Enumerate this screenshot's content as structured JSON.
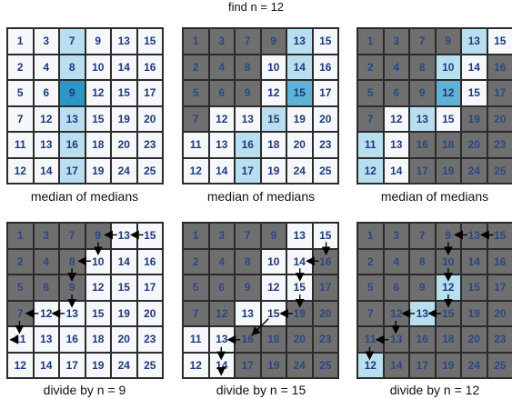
{
  "title": "find n = 12",
  "numbers": [
    [
      1,
      3,
      7,
      9,
      13,
      15
    ],
    [
      2,
      4,
      8,
      10,
      14,
      16
    ],
    [
      5,
      6,
      9,
      12,
      15,
      17
    ],
    [
      7,
      12,
      13,
      15,
      19,
      20
    ],
    [
      11,
      13,
      16,
      18,
      20,
      23
    ],
    [
      12,
      14,
      17,
      19,
      24,
      25
    ]
  ],
  "colors": {
    "white": "#f5f7fa",
    "gray": "#6f6f6f",
    "light_blue": "#b7dff0",
    "mid_blue": "#5fb2d6",
    "dark_blue": "#2c96c4",
    "number_color": "#1f3a7a"
  },
  "panels": [
    {
      "caption": "median of medians",
      "states": [
        "WWLWWW",
        "WWLWWW",
        "WWDWWW",
        "WWLWWW",
        "WWLWWW",
        "WWLWWW"
      ]
    },
    {
      "caption": "median of medians",
      "states": [
        "GGGGLW",
        "GGGWLW",
        "GGGWMW",
        "GWWLWW",
        "WWLWWW",
        "WWLWWW"
      ]
    },
    {
      "caption": "median of medians",
      "states": [
        "GGGGLW",
        "GGGLWG",
        "GGGMWG",
        "GWLWGG",
        "LWGGGG",
        "LWGGGG"
      ]
    },
    {
      "caption": "divide by n = 9",
      "states": [
        "GGGGWW",
        "GGGWWW",
        "GGGWWW",
        "GWWWWW",
        "WWWWWW",
        "WWWWWW"
      ]
    },
    {
      "caption": "divide by n = 15",
      "states": [
        "GGGGWW",
        "GGGWWG",
        "GGGWWG",
        "GGWWGG",
        "WWGGGG",
        "WWGGGG"
      ]
    },
    {
      "caption": "divide by n = 12",
      "states": [
        "GGGGGG",
        "GGGGGG",
        "GGGLGG",
        "GGLGGG",
        "GGGGGG",
        "LGGGGG"
      ]
    }
  ]
}
